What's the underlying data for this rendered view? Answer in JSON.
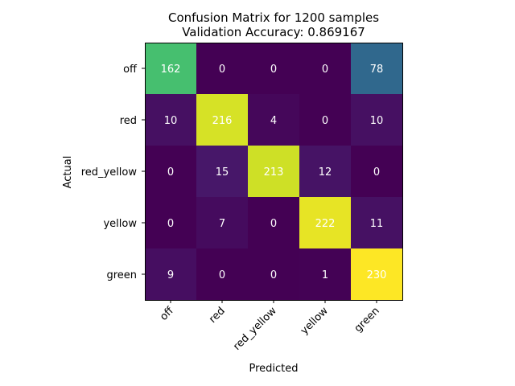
{
  "chart_data": {
    "type": "heatmap",
    "title_line1": "Confusion Matrix for 1200 samples",
    "title_line2": "Validation Accuracy: 0.869167",
    "xlabel": "Predicted",
    "ylabel": "Actual",
    "x_categories": [
      "off",
      "red",
      "red_yellow",
      "yellow",
      "green"
    ],
    "y_categories": [
      "off",
      "red",
      "red_yellow",
      "yellow",
      "green"
    ],
    "values": [
      [
        162,
        0,
        0,
        0,
        78
      ],
      [
        10,
        216,
        4,
        0,
        10
      ],
      [
        0,
        15,
        213,
        12,
        0
      ],
      [
        0,
        7,
        0,
        222,
        11
      ],
      [
        9,
        0,
        0,
        1,
        230
      ]
    ],
    "colormap": "viridis",
    "vmin": 0,
    "vmax": 230,
    "cell_text_color": "#ffffff",
    "x_tick_rotation_deg": 45,
    "grid": false
  }
}
